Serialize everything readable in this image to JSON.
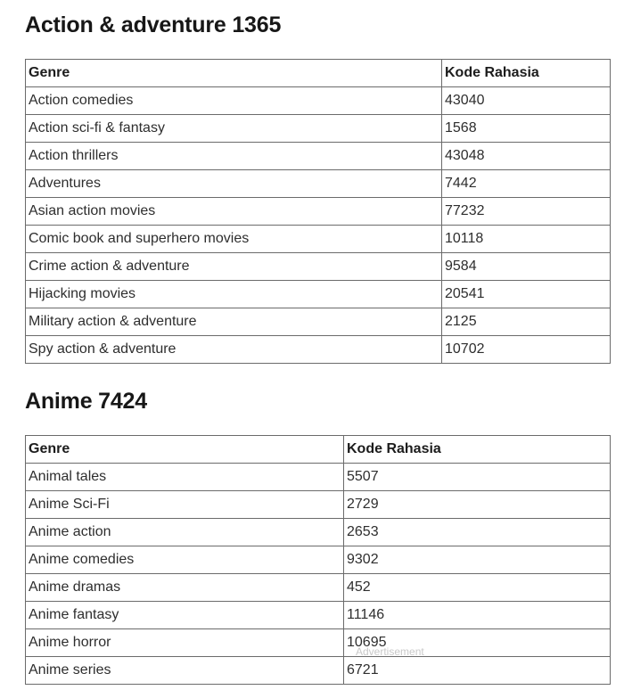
{
  "page": {
    "advertisement_label": "Advertisement"
  },
  "colors": {
    "accent_blue": "#3d8ebf",
    "text": "#2e2e2e",
    "border": "#6b6b6b",
    "ad_gray": "#c9c9c9",
    "background": "#ffffff"
  },
  "sections": [
    {
      "title": "Action & adventure 1365",
      "table": {
        "headers": [
          "Genre",
          "Kode Rahasia"
        ],
        "rows": [
          [
            "Action comedies",
            "43040"
          ],
          [
            "Action sci-fi & fantasy",
            "1568"
          ],
          [
            "Action thrillers",
            "43048"
          ],
          [
            "Adventures",
            "7442"
          ],
          [
            "Asian action movies",
            "77232"
          ],
          [
            "Comic book and superhero movies",
            "10118"
          ],
          [
            "Crime action & adventure",
            "9584"
          ],
          [
            "Hijacking movies",
            "20541"
          ],
          [
            "Military action & adventure",
            "2125"
          ],
          [
            "Spy action & adventure",
            "10702"
          ]
        ]
      }
    },
    {
      "title": "Anime 7424",
      "table": {
        "headers": [
          "Genre",
          "Kode Rahasia"
        ],
        "rows": [
          [
            "Animal tales",
            "5507"
          ],
          [
            "Anime Sci-Fi",
            "2729"
          ],
          [
            "Anime action",
            "2653"
          ],
          [
            "Anime comedies",
            "9302"
          ],
          [
            "Anime dramas",
            "452"
          ],
          [
            "Anime fantasy",
            "11146"
          ],
          [
            "Anime horror",
            "10695"
          ],
          [
            "Anime series",
            "6721"
          ]
        ]
      }
    }
  ]
}
